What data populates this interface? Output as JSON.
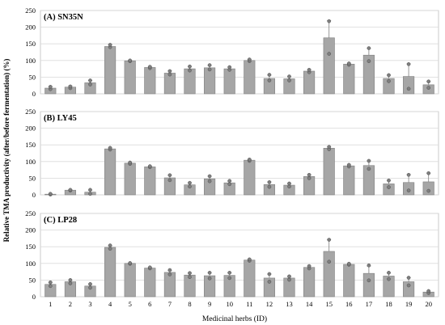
{
  "chart_data": {
    "type": "bar",
    "ylabel": "Relative TMA productivity (after/before fermentation) (%)",
    "xlabel": "Medicinal herbs (ID)",
    "categories": [
      "1",
      "2",
      "3",
      "4",
      "5",
      "6",
      "7",
      "8",
      "9",
      "10",
      "11",
      "12",
      "13",
      "14",
      "15",
      "16",
      "17",
      "18",
      "19",
      "20"
    ],
    "grid": true,
    "panels": [
      {
        "title": "(A) SN35N",
        "ylim": [
          0,
          250
        ],
        "yticks": [
          "0",
          "50",
          "100",
          "150",
          "200",
          "250"
        ],
        "values": [
          17,
          20,
          33,
          142,
          99,
          79,
          62,
          75,
          78,
          75,
          100,
          46,
          45,
          68,
          168,
          89,
          116,
          46,
          52,
          27
        ],
        "errors": [
          5,
          4,
          7,
          6,
          2,
          3,
          7,
          7,
          7,
          5,
          3,
          10,
          6,
          5,
          52,
          3,
          20,
          10,
          38,
          10
        ],
        "points": [
          [
            14,
            21
          ],
          [
            17,
            22
          ],
          [
            28,
            40
          ],
          [
            140,
            147
          ],
          [
            98,
            100
          ],
          [
            77,
            81
          ],
          [
            58,
            68
          ],
          [
            70,
            82
          ],
          [
            73,
            86
          ],
          [
            72,
            80
          ],
          [
            98,
            103
          ],
          [
            40,
            57
          ],
          [
            40,
            52
          ],
          [
            65,
            72
          ],
          [
            120,
            218
          ],
          [
            87,
            91
          ],
          [
            98,
            137
          ],
          [
            38,
            56
          ],
          [
            15,
            89
          ],
          [
            18,
            37
          ]
        ]
      },
      {
        "title": "(B) LY45",
        "ylim": [
          0,
          250
        ],
        "yticks": [
          "0",
          "50",
          "100",
          "150",
          "200",
          "250"
        ],
        "values": [
          2,
          14,
          8,
          138,
          95,
          84,
          51,
          30,
          48,
          36,
          104,
          31,
          29,
          55,
          140,
          87,
          88,
          33,
          37,
          39
        ],
        "errors": [
          1,
          2,
          6,
          3,
          2,
          2,
          8,
          6,
          8,
          5,
          2,
          8,
          5,
          5,
          4,
          3,
          14,
          11,
          24,
          26
        ],
        "points": [
          [
            1,
            3
          ],
          [
            13,
            15
          ],
          [
            3,
            15
          ],
          [
            136,
            141
          ],
          [
            93,
            97
          ],
          [
            83,
            86
          ],
          [
            44,
            59
          ],
          [
            25,
            36
          ],
          [
            41,
            56
          ],
          [
            32,
            42
          ],
          [
            102,
            106
          ],
          [
            24,
            38
          ],
          [
            25,
            34
          ],
          [
            50,
            60
          ],
          [
            137,
            144
          ],
          [
            85,
            90
          ],
          [
            78,
            102
          ],
          [
            23,
            43
          ],
          [
            13,
            60
          ],
          [
            12,
            65
          ]
        ]
      },
      {
        "title": "(C) LP28",
        "ylim": [
          0,
          250
        ],
        "yticks": [
          "0",
          "50",
          "100",
          "150",
          "200",
          "250"
        ],
        "values": [
          37,
          45,
          32,
          148,
          100,
          86,
          73,
          65,
          63,
          64,
          110,
          56,
          56,
          88,
          136,
          97,
          70,
          62,
          45,
          14
        ],
        "errors": [
          6,
          5,
          6,
          5,
          1,
          2,
          6,
          6,
          9,
          8,
          2,
          12,
          6,
          4,
          36,
          2,
          22,
          9,
          12,
          3
        ],
        "points": [
          [
            32,
            43
          ],
          [
            40,
            50
          ],
          [
            27,
            38
          ],
          [
            144,
            154
          ],
          [
            99,
            101
          ],
          [
            85,
            88
          ],
          [
            67,
            80
          ],
          [
            59,
            71
          ],
          [
            55,
            72
          ],
          [
            56,
            72
          ],
          [
            108,
            112
          ],
          [
            45,
            68
          ],
          [
            51,
            61
          ],
          [
            85,
            92
          ],
          [
            105,
            171
          ],
          [
            96,
            99
          ],
          [
            49,
            94
          ],
          [
            53,
            72
          ],
          [
            34,
            57
          ],
          [
            11,
            17
          ]
        ]
      }
    ]
  }
}
